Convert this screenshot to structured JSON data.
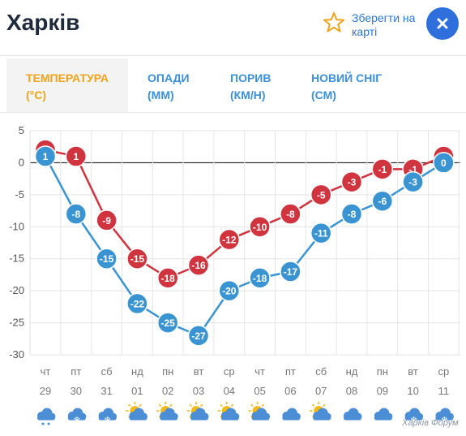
{
  "header": {
    "city": "Харків",
    "save_line1": "Зберегти на",
    "save_line2": "карті",
    "close_glyph": "×"
  },
  "tabs": [
    {
      "line1": "ТЕМПЕРАТУРА",
      "line2": "(°C)",
      "active": true
    },
    {
      "line1": "ОПАДИ",
      "line2": "(ММ)",
      "active": false
    },
    {
      "line1": "ПОРИВ",
      "line2": "(КМ/Н)",
      "active": false
    },
    {
      "line1": "НОВИЙ СНІГ",
      "line2": "(СМ)",
      "active": false
    }
  ],
  "colors": {
    "max_series": "#d0343f",
    "min_series": "#3a94d2",
    "accent": "#f0a318",
    "tab_text": "#3d8fd6",
    "close_button": "#2f6fdb"
  },
  "watermark": "Харків Форум",
  "chart_data": {
    "type": "line",
    "y_ticks": [
      5,
      0,
      -5,
      -10,
      -15,
      -20,
      -25,
      -30
    ],
    "ylim": [
      -30,
      5
    ],
    "grid": true,
    "x": [
      {
        "dow": "чт",
        "day": "29",
        "icon": "cloud-drizzle-icon"
      },
      {
        "dow": "пт",
        "day": "30",
        "icon": "cloud-snow-icon"
      },
      {
        "dow": "сб",
        "day": "31",
        "icon": "cloud-snow-icon"
      },
      {
        "dow": "нд",
        "day": "01",
        "icon": "sun-cloud-icon"
      },
      {
        "dow": "пн",
        "day": "02",
        "icon": "sun-cloud-icon"
      },
      {
        "dow": "вт",
        "day": "03",
        "icon": "partly-cloudy-icon"
      },
      {
        "dow": "ср",
        "day": "04",
        "icon": "partly-cloudy-icon"
      },
      {
        "dow": "чт",
        "day": "05",
        "icon": "sun-cloud-icon"
      },
      {
        "dow": "пт",
        "day": "06",
        "icon": "cloud-icon"
      },
      {
        "dow": "сб",
        "day": "07",
        "icon": "partly-cloudy-icon"
      },
      {
        "dow": "нд",
        "day": "08",
        "icon": "cloud-icon"
      },
      {
        "dow": "пн",
        "day": "09",
        "icon": "cloud-icon"
      },
      {
        "dow": "вт",
        "day": "10",
        "icon": "cloud-snow-icon"
      },
      {
        "dow": "ср",
        "day": "11",
        "icon": "cloud-snow-icon"
      }
    ],
    "series": [
      {
        "key": "max",
        "values": [
          2,
          1,
          -9,
          -15,
          -18,
          -16,
          -12,
          -10,
          -8,
          -5,
          -3,
          -1,
          -1,
          1
        ]
      },
      {
        "key": "min",
        "values": [
          1,
          -8,
          -15,
          -22,
          -25,
          -27,
          -20,
          -18,
          -17,
          -11,
          -8,
          -6,
          -3,
          0
        ]
      }
    ]
  }
}
